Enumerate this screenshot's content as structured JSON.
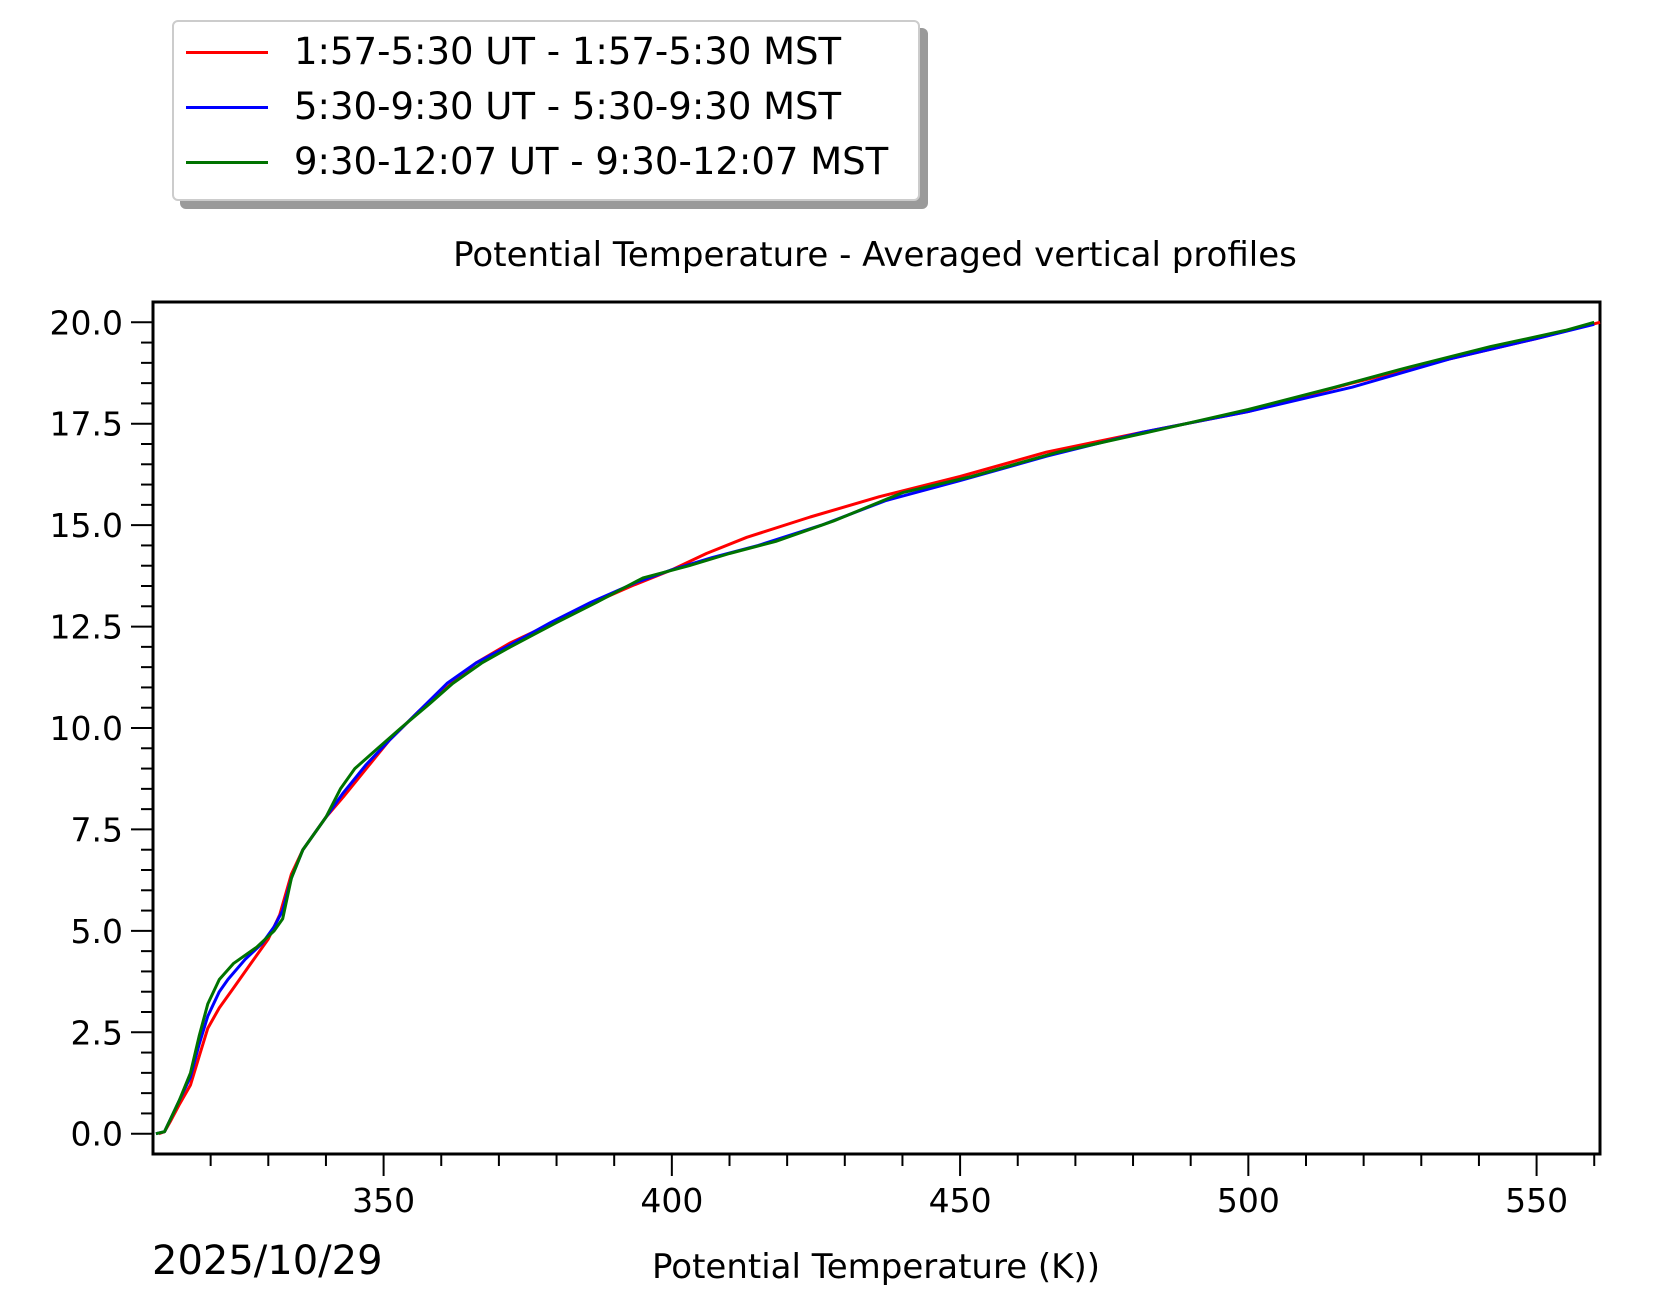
{
  "chart_data": {
    "type": "line",
    "title": "Potential Temperature - Averaged vertical profiles",
    "xlabel": "Potential Temperature (K))",
    "ylabel": "",
    "date_label": "2025/10/29",
    "xlim": [
      310,
      561
    ],
    "ylim": [
      -0.5,
      20.5
    ],
    "x_ticks": [
      350,
      400,
      450,
      500,
      550
    ],
    "x_tick_labels": [
      "350",
      "400",
      "450",
      "500",
      "550"
    ],
    "y_ticks": [
      0,
      2.5,
      5,
      7.5,
      10,
      12.5,
      15,
      17.5,
      20
    ],
    "y_tick_labels": [
      "0.0",
      "2.5",
      "5.0",
      "7.5",
      "10.0",
      "12.5",
      "15.0",
      "17.5",
      "20.0"
    ],
    "legend_position": "top-left (outside plot)",
    "series": [
      {
        "name": "1:57-5:30 UT - 1:57-5:30 MST",
        "color": "#ff0000",
        "points": [
          [
            311,
            0
          ],
          [
            312,
            0.05
          ],
          [
            313,
            0.3
          ],
          [
            314.5,
            0.7
          ],
          [
            316.5,
            1.2
          ],
          [
            318,
            1.9
          ],
          [
            319.5,
            2.6
          ],
          [
            321.5,
            3.1
          ],
          [
            324,
            3.6
          ],
          [
            327,
            4.2
          ],
          [
            330,
            4.8
          ],
          [
            332,
            5.4
          ],
          [
            334,
            6.4
          ],
          [
            336,
            7.0
          ],
          [
            340,
            7.8
          ],
          [
            343,
            8.3
          ],
          [
            347,
            9.0
          ],
          [
            351,
            9.7
          ],
          [
            356,
            10.4
          ],
          [
            361,
            11.0
          ],
          [
            366,
            11.6
          ],
          [
            372,
            12.1
          ],
          [
            378,
            12.5
          ],
          [
            385,
            13.0
          ],
          [
            393,
            13.5
          ],
          [
            400,
            13.9
          ],
          [
            406,
            14.3
          ],
          [
            413,
            14.7
          ],
          [
            424,
            15.2
          ],
          [
            436,
            15.7
          ],
          [
            450,
            16.2
          ],
          [
            465,
            16.8
          ],
          [
            482,
            17.3
          ],
          [
            500,
            17.8
          ],
          [
            518,
            18.5
          ],
          [
            535,
            19.1
          ],
          [
            550,
            19.6
          ],
          [
            561,
            20.0
          ]
        ]
      },
      {
        "name": "5:30-9:30 UT - 5:30-9:30 MST",
        "color": "#0000ff",
        "points": [
          [
            310.5,
            0
          ],
          [
            312,
            0.05
          ],
          [
            313,
            0.35
          ],
          [
            314.5,
            0.8
          ],
          [
            316.5,
            1.4
          ],
          [
            318,
            2.2
          ],
          [
            319.5,
            2.9
          ],
          [
            321.5,
            3.5
          ],
          [
            323,
            3.8
          ],
          [
            326,
            4.3
          ],
          [
            329,
            4.7
          ],
          [
            331,
            5.1
          ],
          [
            332.5,
            5.5
          ],
          [
            334,
            6.3
          ],
          [
            336,
            7.0
          ],
          [
            340,
            7.8
          ],
          [
            343,
            8.4
          ],
          [
            347,
            9.1
          ],
          [
            351,
            9.7
          ],
          [
            356,
            10.4
          ],
          [
            361,
            11.1
          ],
          [
            366,
            11.6
          ],
          [
            372,
            12.05
          ],
          [
            379,
            12.6
          ],
          [
            386,
            13.1
          ],
          [
            394,
            13.6
          ],
          [
            400,
            13.9
          ],
          [
            407,
            14.2
          ],
          [
            415,
            14.5
          ],
          [
            426,
            15.0
          ],
          [
            437,
            15.6
          ],
          [
            450,
            16.1
          ],
          [
            465,
            16.7
          ],
          [
            482,
            17.3
          ],
          [
            500,
            17.8
          ],
          [
            518,
            18.4
          ],
          [
            535,
            19.1
          ],
          [
            550,
            19.6
          ],
          [
            560,
            19.95
          ]
        ]
      },
      {
        "name": "9:30-12:07 UT - 9:30-12:07 MST",
        "color": "#007300",
        "points": [
          [
            310.5,
            0
          ],
          [
            312,
            0.05
          ],
          [
            313,
            0.35
          ],
          [
            314.5,
            0.8
          ],
          [
            316.5,
            1.5
          ],
          [
            318,
            2.4
          ],
          [
            319.5,
            3.2
          ],
          [
            321.5,
            3.8
          ],
          [
            324,
            4.2
          ],
          [
            328,
            4.6
          ],
          [
            331,
            5.0
          ],
          [
            332.5,
            5.3
          ],
          [
            334,
            6.3
          ],
          [
            336,
            7.0
          ],
          [
            340,
            7.8
          ],
          [
            342.5,
            8.5
          ],
          [
            345,
            9.0
          ],
          [
            349,
            9.5
          ],
          [
            353,
            10.0
          ],
          [
            358,
            10.6
          ],
          [
            362,
            11.1
          ],
          [
            367,
            11.6
          ],
          [
            372,
            12.0
          ],
          [
            380,
            12.6
          ],
          [
            387,
            13.1
          ],
          [
            395,
            13.7
          ],
          [
            403,
            14.0
          ],
          [
            410,
            14.3
          ],
          [
            418,
            14.6
          ],
          [
            428,
            15.1
          ],
          [
            440,
            15.8
          ],
          [
            452,
            16.2
          ],
          [
            467,
            16.8
          ],
          [
            483,
            17.3
          ],
          [
            500,
            17.85
          ],
          [
            515,
            18.4
          ],
          [
            528,
            18.9
          ],
          [
            542,
            19.4
          ],
          [
            555,
            19.8
          ],
          [
            560,
            20.0
          ]
        ]
      }
    ]
  }
}
